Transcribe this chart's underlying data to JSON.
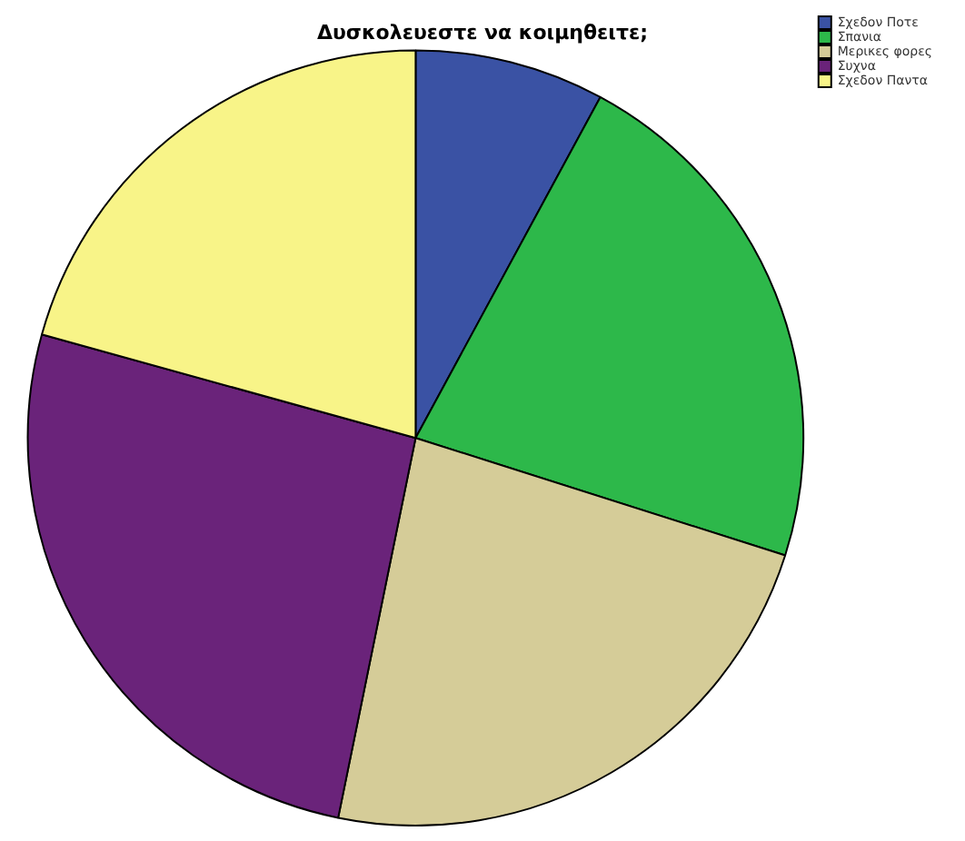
{
  "chart_data": {
    "type": "pie",
    "title": "Δυσκολευεστε να κοιμηθειτε;",
    "categories": [
      "Σχεδον Ποτε",
      "Σπανια",
      "Μερικες φορες",
      "Συχνα",
      "Σχεδον Παντα"
    ],
    "values": [
      7.9,
      22.0,
      23.3,
      26.1,
      20.7
    ],
    "colors": [
      "#3a52a4",
      "#2db84a",
      "#d5cc98",
      "#6a237a",
      "#f8f488"
    ],
    "legend": "top right"
  }
}
